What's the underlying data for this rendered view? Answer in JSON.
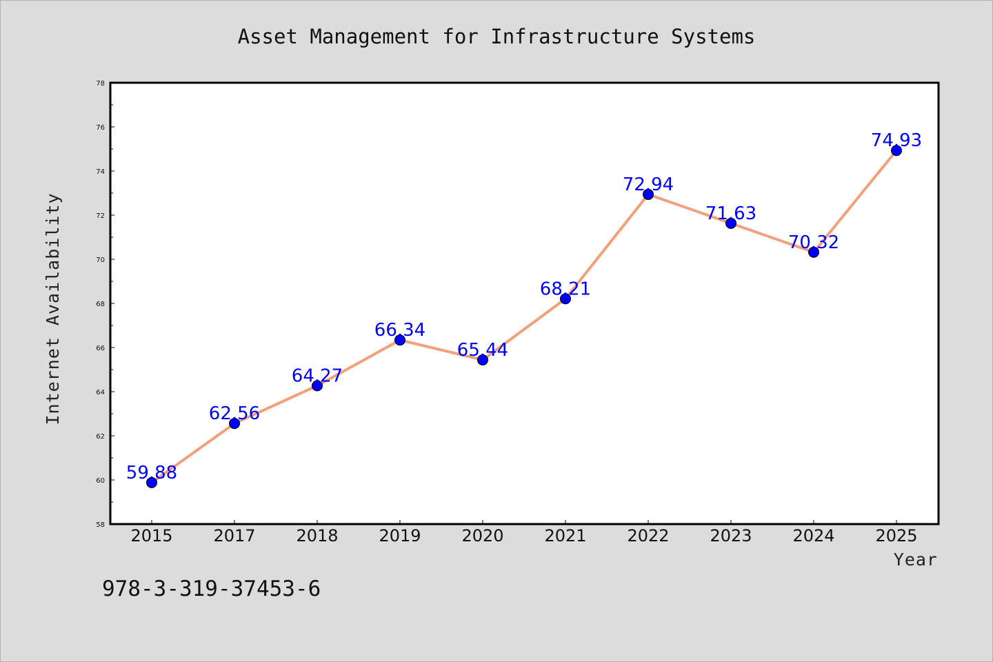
{
  "chart_data": {
    "type": "line",
    "title": "Asset Management for Infrastructure Systems",
    "xlabel": "Year",
    "ylabel": "Internet Availability",
    "categories": [
      "2015",
      "2017",
      "2018",
      "2019",
      "2020",
      "2021",
      "2022",
      "2023",
      "2024",
      "2025"
    ],
    "series": [
      {
        "values": [
          59.88,
          62.56,
          64.27,
          66.34,
          65.44,
          68.21,
          72.94,
          71.63,
          70.32,
          74.93
        ]
      }
    ],
    "data_labels": [
      "59.88",
      "62.56",
      "64.27",
      "66.34",
      "65.44",
      "68.21",
      "72.94",
      "71.63",
      "70.32",
      "74.93"
    ],
    "ylim": [
      58,
      78
    ],
    "yticks": [
      58,
      60,
      62,
      64,
      66,
      68,
      70,
      72,
      74,
      76,
      78
    ],
    "grid": false,
    "legend": "none",
    "colors": {
      "line": "#f4a07a",
      "marker": "#0000ff",
      "label": "#0000ff",
      "background": "#dcdcdc",
      "plot_background": "#ffffff"
    }
  },
  "footnote": "978-3-319-37453-6"
}
